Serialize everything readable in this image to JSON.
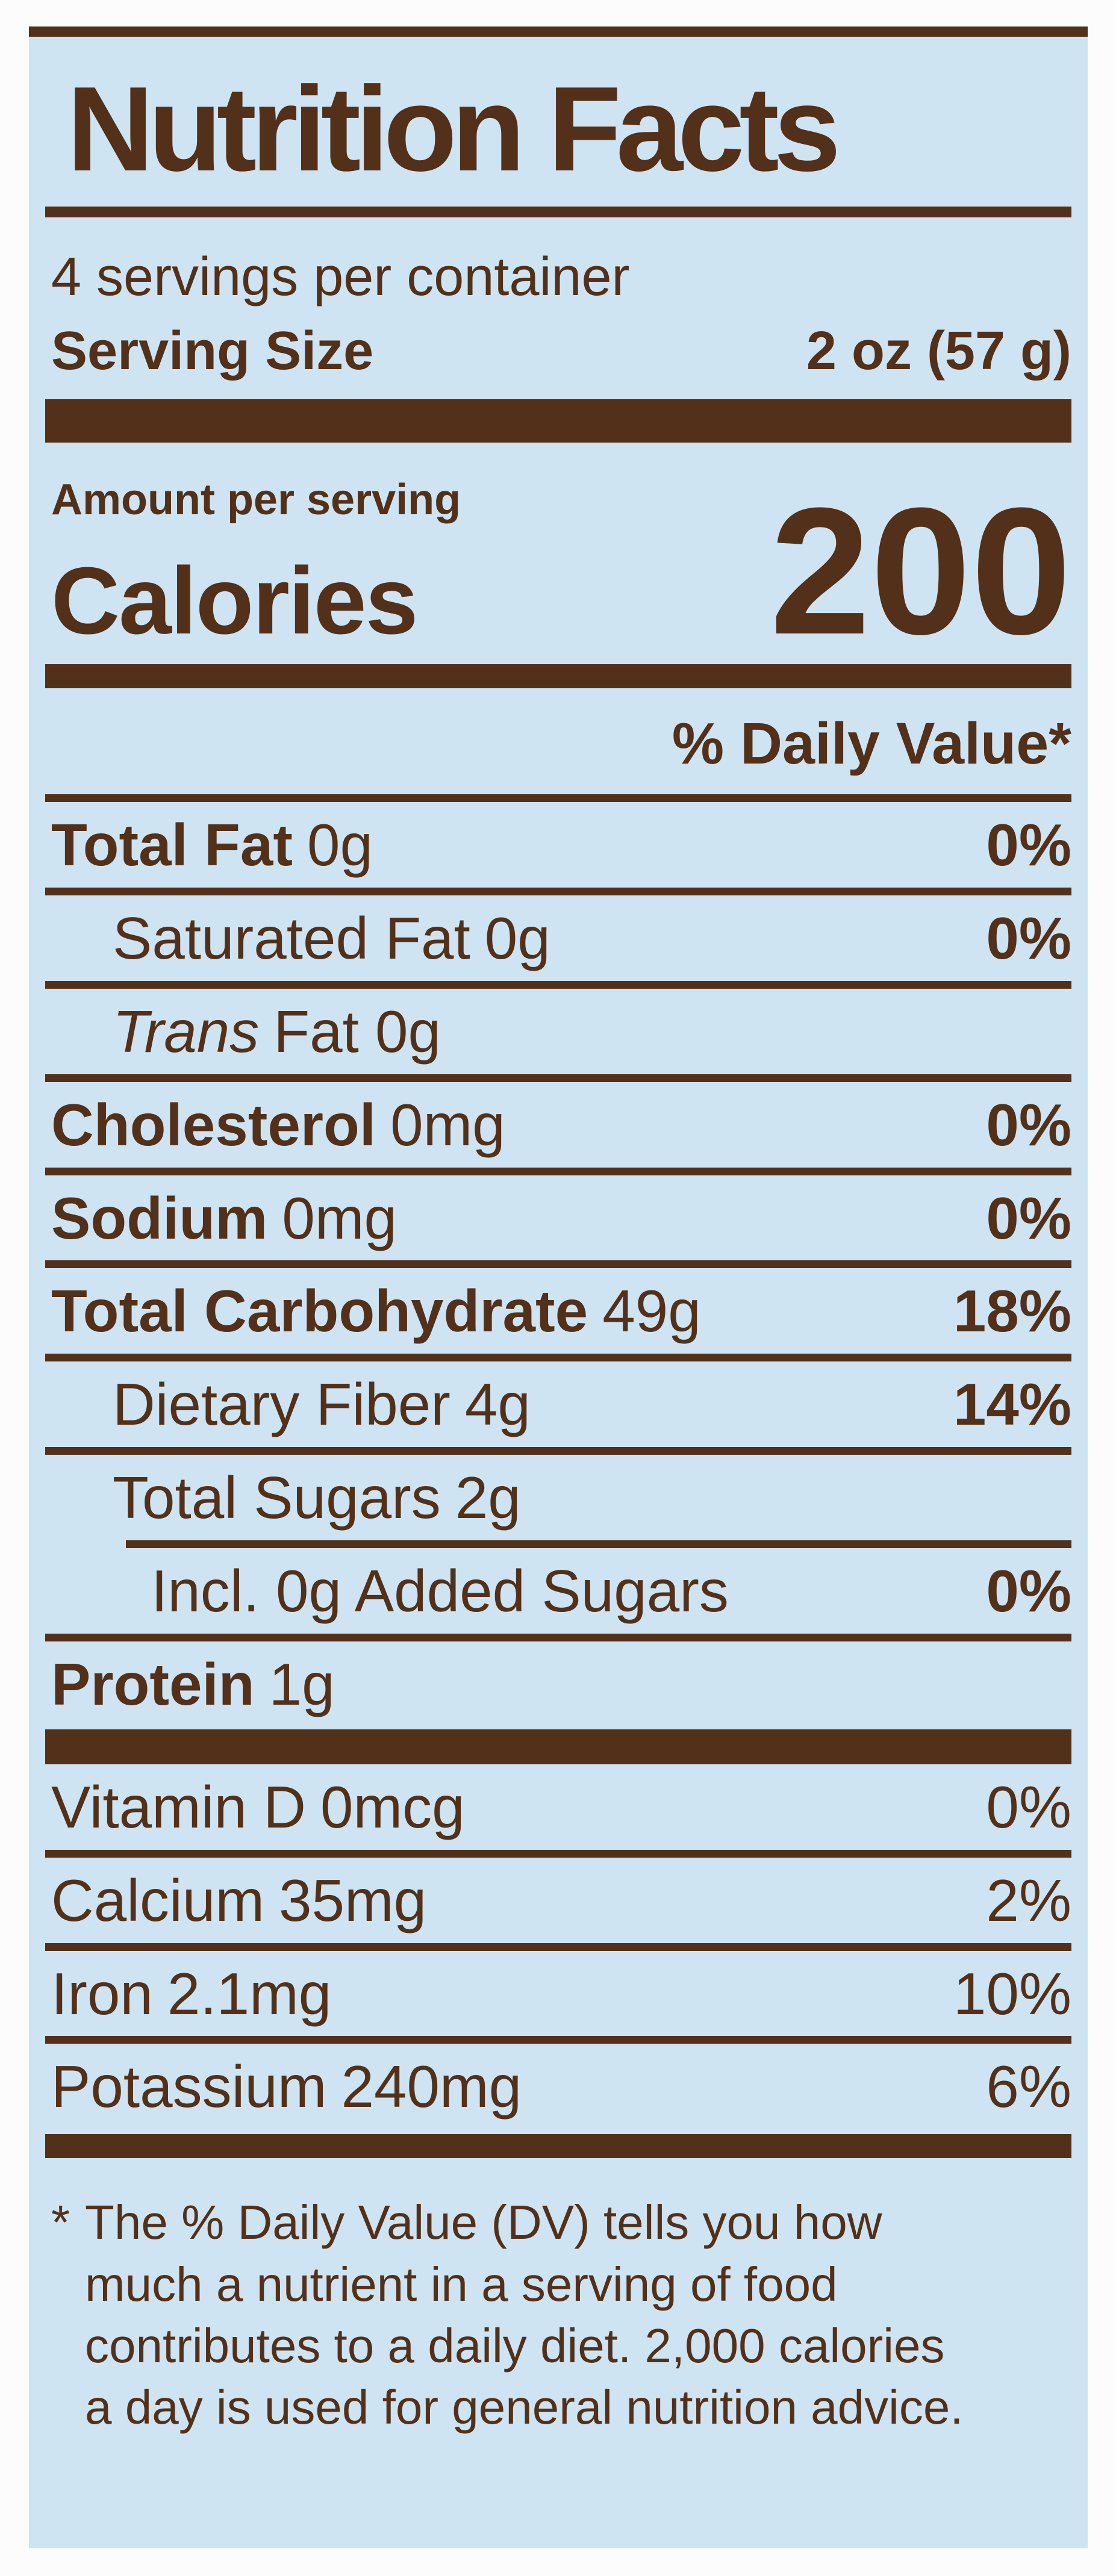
{
  "colors": {
    "page_background": "#fcfcfc",
    "panel_background": "#cee4f2",
    "ink": "#523019"
  },
  "title": "Nutrition Facts",
  "servings_per_container": "4 servings per container",
  "serving_size": {
    "label": "Serving Size",
    "value": "2 oz (57 g)"
  },
  "amount_per_serving": "Amount per serving",
  "calories": {
    "label": "Calories",
    "value": "200"
  },
  "daily_value_header": "% Daily Value*",
  "nutrients": [
    {
      "name": "Total Fat",
      "amount": "0g",
      "dv": "0%"
    },
    {
      "name": "Saturated Fat",
      "amount": "0g",
      "dv": "0%"
    },
    {
      "name": "Trans",
      "amount": "Fat 0g",
      "dv": ""
    },
    {
      "name": "Cholesterol",
      "amount": "0mg",
      "dv": "0%"
    },
    {
      "name": "Sodium",
      "amount": "0mg",
      "dv": "0%"
    },
    {
      "name": "Total Carbohydrate",
      "amount": "49g",
      "dv": "18%"
    },
    {
      "name": "Dietary Fiber",
      "amount": "4g",
      "dv": "14%"
    },
    {
      "name": "Total Sugars",
      "amount": "2g",
      "dv": ""
    },
    {
      "name": "Incl. 0g Added Sugars",
      "amount": "",
      "dv": "0%"
    },
    {
      "name": "Protein",
      "amount": "1g",
      "dv": ""
    }
  ],
  "vitamins": [
    {
      "name": "Vitamin D",
      "amount": "0mcg",
      "dv": "0%"
    },
    {
      "name": "Calcium",
      "amount": "35mg",
      "dv": "2%"
    },
    {
      "name": "Iron",
      "amount": "2.1mg",
      "dv": "10%"
    },
    {
      "name": "Potassium",
      "amount": "240mg",
      "dv": "6%"
    }
  ],
  "footnote": {
    "marker": "*",
    "text": "The % Daily Value (DV) tells you how much a nutrient in a serving of food contributes to a daily diet. 2,000 calories a day is used for general nutrition advice."
  }
}
